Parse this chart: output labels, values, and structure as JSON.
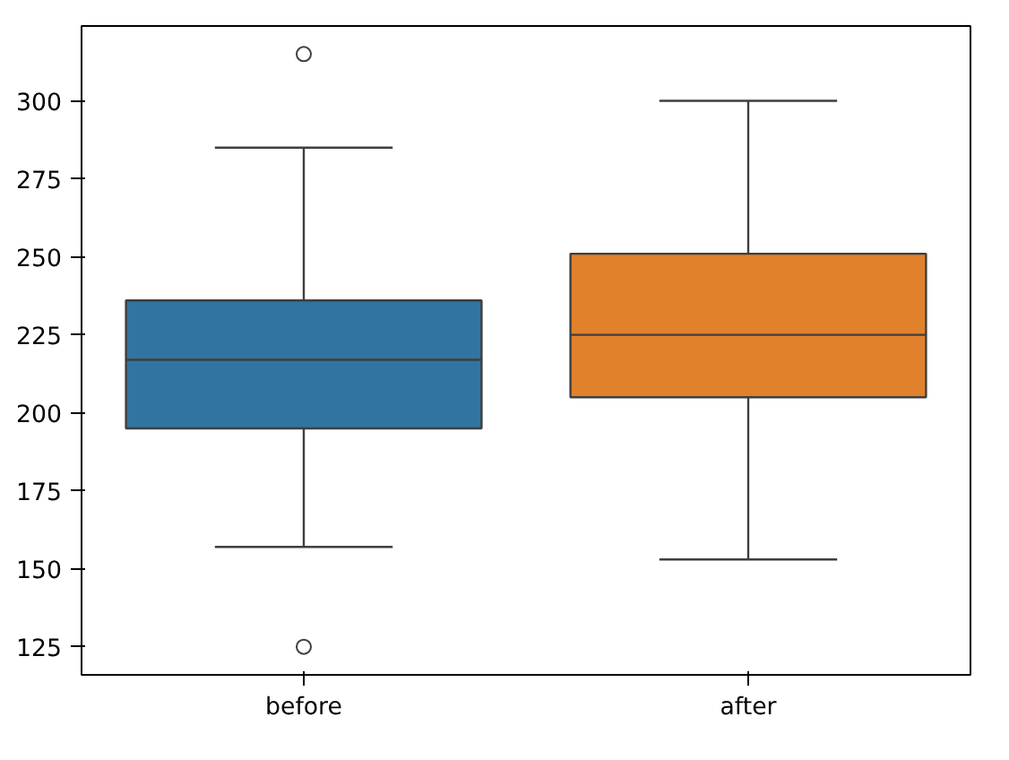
{
  "chart_data": {
    "type": "box",
    "categories": [
      "before",
      "after"
    ],
    "boxes": [
      {
        "low": 157,
        "q1": 195,
        "median": 217,
        "q3": 236,
        "high": 285,
        "outliers": [
          315,
          125
        ]
      },
      {
        "low": 153,
        "q1": 205,
        "median": 225,
        "q3": 251,
        "high": 300
      }
    ],
    "colors": [
      "#3274a1",
      "#e1812c"
    ],
    "ylim": [
      116,
      324
    ],
    "yticks": [
      125,
      150,
      175,
      200,
      225,
      250,
      275,
      300
    ]
  }
}
